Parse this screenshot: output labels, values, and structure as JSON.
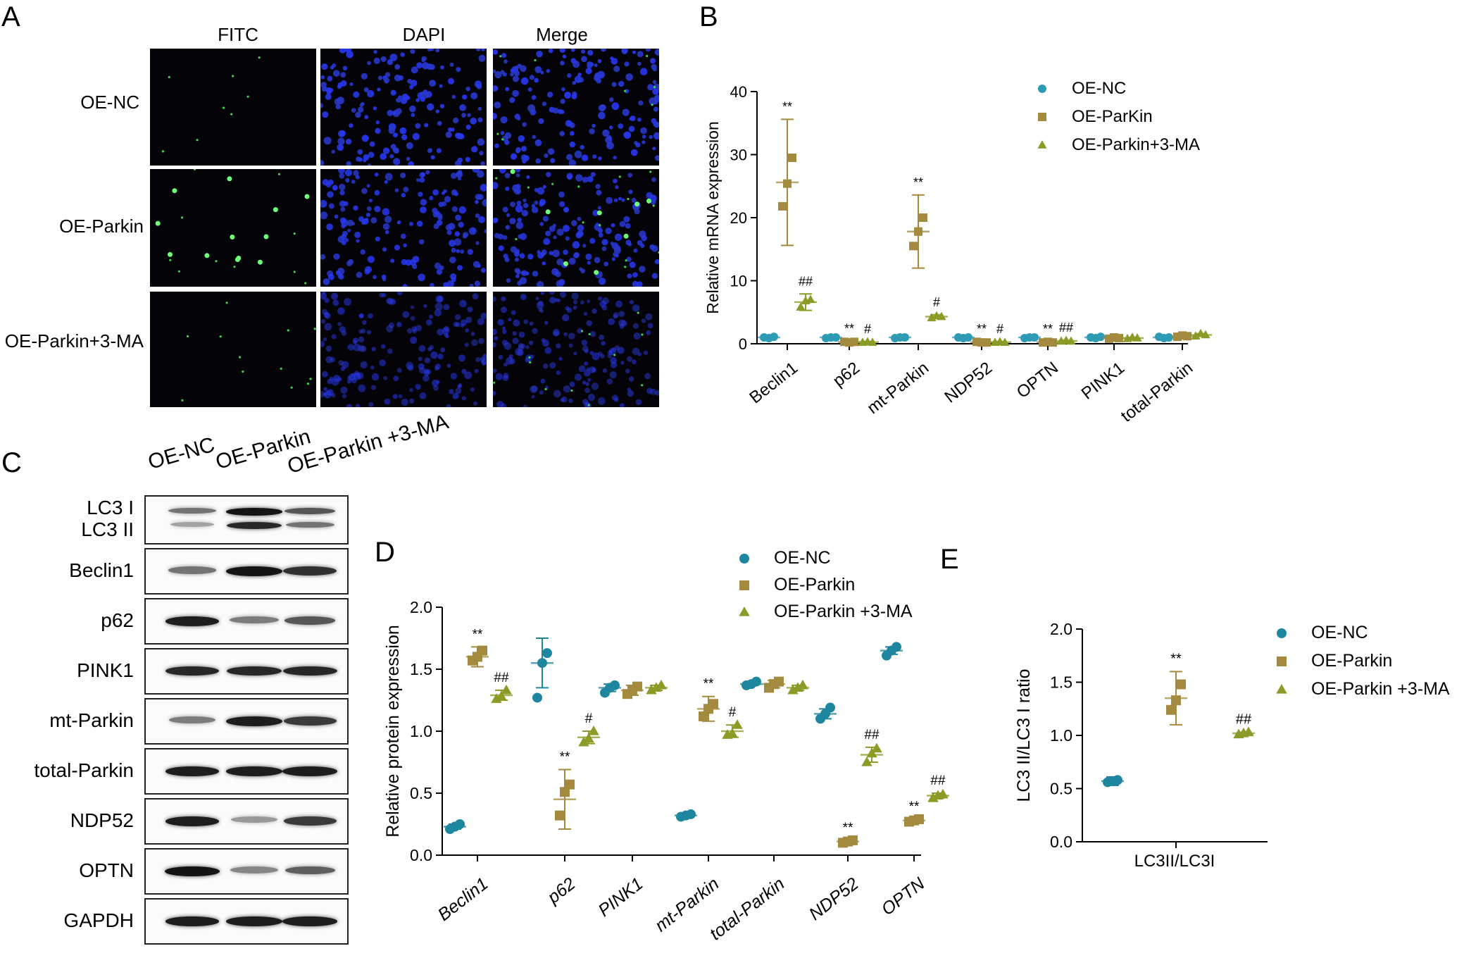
{
  "panels": {
    "a": "A",
    "b": "B",
    "c": "C",
    "d": "D",
    "e": "E"
  },
  "panel_a": {
    "columns": [
      "FITC",
      "DAPI",
      "Merge"
    ],
    "rows": [
      "OE-NC",
      "OE-Parkin",
      "OE-Parkin+3-MA"
    ]
  },
  "panel_c": {
    "lanes": [
      "OE-NC",
      "OE-Parkin",
      "OE-Parkin +3-MA"
    ],
    "blots": [
      {
        "label": "LC3 I",
        "label2": "LC3 II",
        "intensity": [
          0.45,
          0.95,
          0.6
        ],
        "intensity2": [
          0.2,
          0.85,
          0.45
        ]
      },
      {
        "label": "Beclin1",
        "intensity": [
          0.45,
          0.95,
          0.8
        ]
      },
      {
        "label": "p62",
        "intensity": [
          0.9,
          0.4,
          0.6
        ]
      },
      {
        "label": "PINK1",
        "intensity": [
          0.85,
          0.85,
          0.85
        ]
      },
      {
        "label": "mt-Parkin",
        "intensity": [
          0.4,
          0.9,
          0.75
        ]
      },
      {
        "label": "total-Parkin",
        "intensity": [
          0.9,
          0.9,
          0.9
        ]
      },
      {
        "label": "NDP52",
        "intensity": [
          0.9,
          0.25,
          0.75
        ]
      },
      {
        "label": "OPTN",
        "intensity": [
          0.95,
          0.35,
          0.55
        ]
      },
      {
        "label": "GAPDH",
        "intensity": [
          0.9,
          0.9,
          0.9
        ]
      }
    ]
  },
  "chart_data": [
    {
      "type": "scatter",
      "panel": "B",
      "ylabel": "Relative mRNA expression",
      "ylim": [
        0,
        40
      ],
      "yticks": [
        "0",
        "10",
        "20",
        "30",
        "40"
      ],
      "categories": [
        "Beclin1",
        "p62",
        "mt-Parkin",
        "NDP52",
        "OPTN",
        "PINK1",
        "total-Parkin"
      ],
      "legend_position": "top-right",
      "series": [
        {
          "name": "OE-NC",
          "marker": "circle",
          "color": "#2e9bb5",
          "points": [
            [
              1.0,
              0.9,
              1.1
            ],
            [
              0.9,
              1.0,
              1.0
            ],
            [
              0.9,
              1.0,
              1.0
            ],
            [
              1.0,
              0.9,
              1.0
            ],
            [
              0.9,
              1.0,
              1.0
            ],
            [
              1.0,
              0.9,
              1.1
            ],
            [
              1.1,
              0.9,
              1.0
            ]
          ],
          "mean": [
            1.0,
            1.0,
            1.0,
            1.0,
            1.0,
            1.0,
            1.0
          ],
          "sd": [
            0.1,
            0.05,
            0.05,
            0.05,
            0.05,
            0.1,
            0.1
          ],
          "annot": [
            "",
            "",
            "",
            "",
            "",
            "",
            ""
          ]
        },
        {
          "name": "OE-ParKin",
          "marker": "square",
          "color": "#a38a3f",
          "points": [
            [
              21.8,
              25.4,
              29.5
            ],
            [
              0.3,
              0.2,
              0.3
            ],
            [
              15.5,
              17.8,
              20.0
            ],
            [
              0.3,
              0.2,
              0.2
            ],
            [
              0.2,
              0.3,
              0.2
            ],
            [
              0.8,
              1.0,
              0.9
            ],
            [
              1.1,
              1.3,
              1.2
            ]
          ],
          "mean": [
            25.6,
            0.3,
            17.8,
            0.25,
            0.25,
            0.9,
            1.2
          ],
          "sd": [
            10.0,
            0.1,
            5.8,
            0.1,
            0.1,
            0.1,
            0.15
          ],
          "annot": [
            "**",
            "**",
            "**",
            "**",
            "**",
            "",
            ""
          ]
        },
        {
          "name": "OE-Parkin+3-MA",
          "marker": "triangle",
          "color": "#8c9a26",
          "points": [
            [
              5.8,
              6.8,
              7.0
            ],
            [
              0.2,
              0.3,
              0.2
            ],
            [
              4.1,
              4.4,
              4.3
            ],
            [
              0.2,
              0.3,
              0.2
            ],
            [
              0.4,
              0.5,
              0.4
            ],
            [
              0.8,
              1.0,
              0.9
            ],
            [
              1.2,
              1.6,
              1.4
            ]
          ],
          "mean": [
            6.6,
            0.25,
            4.3,
            0.25,
            0.45,
            0.9,
            1.4
          ],
          "sd": [
            1.3,
            0.1,
            0.3,
            0.1,
            0.1,
            0.1,
            0.2
          ],
          "annot": [
            "##",
            "#",
            "#",
            "#",
            "##",
            "",
            ""
          ]
        }
      ]
    },
    {
      "type": "scatter",
      "panel": "D",
      "ylabel": "Relative protein expression",
      "ylim": [
        0,
        2.0
      ],
      "yticks": [
        "0.0",
        "0.5",
        "1.0",
        "1.5",
        "2.0"
      ],
      "categories": [
        "Beclin1",
        "p62",
        "PINK1",
        "mt-Parkin",
        "total-Parkin",
        "NDP52",
        "OPTN"
      ],
      "legend_position": "top-right",
      "series": [
        {
          "name": "OE-NC",
          "marker": "circle",
          "color": "#1f86a0",
          "points": [
            [
              0.21,
              0.23,
              0.25
            ],
            [
              1.27,
              1.55,
              1.63
            ],
            [
              1.31,
              1.35,
              1.37
            ],
            [
              0.31,
              0.32,
              0.33
            ],
            [
              1.37,
              1.38,
              1.4
            ],
            [
              1.1,
              1.14,
              1.19
            ],
            [
              1.61,
              1.65,
              1.68
            ]
          ],
          "mean": [
            0.23,
            1.55,
            1.35,
            0.32,
            1.38,
            1.14,
            1.65
          ],
          "sd": [
            0.02,
            0.2,
            0.03,
            0.01,
            0.01,
            0.04,
            0.03
          ],
          "annot": [
            "",
            "",
            "",
            "",
            "",
            "",
            ""
          ]
        },
        {
          "name": "OE-Parkin",
          "marker": "square",
          "color": "#a38a3f",
          "points": [
            [
              1.57,
              1.6,
              1.65
            ],
            [
              0.32,
              0.51,
              0.57
            ],
            [
              1.3,
              1.33,
              1.36
            ],
            [
              1.12,
              1.18,
              1.22
            ],
            [
              1.35,
              1.38,
              1.4
            ],
            [
              0.1,
              0.11,
              0.12
            ],
            [
              0.27,
              0.28,
              0.29
            ]
          ],
          "mean": [
            1.6,
            0.45,
            1.33,
            1.18,
            1.38,
            0.11,
            0.28
          ],
          "sd": [
            0.08,
            0.24,
            0.04,
            0.1,
            0.03,
            0.01,
            0.01
          ],
          "annot": [
            "**",
            "**",
            "",
            "**",
            "",
            "**",
            "**"
          ]
        },
        {
          "name": "OE-Parkin +3-MA",
          "marker": "triangle",
          "color": "#8c9a26",
          "points": [
            [
              1.26,
              1.28,
              1.33
            ],
            [
              0.91,
              0.94,
              1.0
            ],
            [
              1.33,
              1.35,
              1.37
            ],
            [
              0.97,
              0.98,
              1.05
            ],
            [
              1.33,
              1.35,
              1.37
            ],
            [
              0.75,
              0.82,
              0.86
            ],
            [
              0.46,
              0.48,
              0.49
            ]
          ],
          "mean": [
            1.29,
            0.95,
            1.35,
            1.0,
            1.35,
            0.81,
            0.48
          ],
          "sd": [
            0.04,
            0.05,
            0.02,
            0.05,
            0.02,
            0.06,
            0.02
          ],
          "annot": [
            "##",
            "#",
            "",
            "#",
            "",
            "##",
            "##"
          ]
        }
      ]
    },
    {
      "type": "scatter",
      "panel": "E",
      "ylabel": "LC3 II/LC3 I ratio",
      "ylim": [
        0,
        2.0
      ],
      "yticks": [
        "0.0",
        "0.5",
        "1.0",
        "1.5",
        "2.0"
      ],
      "categories": [
        "LC3II/LC3I"
      ],
      "legend_position": "top-right",
      "series": [
        {
          "name": "OE-NC",
          "marker": "circle",
          "color": "#1f86a0",
          "points": [
            [
              0.56,
              0.57,
              0.58
            ]
          ],
          "mean": [
            0.57
          ],
          "sd": [
            0.04
          ],
          "annot": [
            ""
          ]
        },
        {
          "name": "OE-Parkin",
          "marker": "square",
          "color": "#a38a3f",
          "points": [
            [
              1.24,
              1.33,
              1.48
            ]
          ],
          "mean": [
            1.35
          ],
          "sd": [
            0.25
          ],
          "annot": [
            "**"
          ]
        },
        {
          "name": "OE-Parkin +3-MA",
          "marker": "triangle",
          "color": "#8c9a26",
          "points": [
            [
              1.01,
              1.02,
              1.03
            ]
          ],
          "mean": [
            1.02
          ],
          "sd": [
            0.01
          ],
          "annot": [
            "##"
          ]
        }
      ]
    }
  ]
}
